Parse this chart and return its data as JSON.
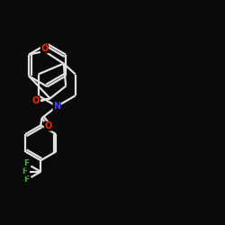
{
  "background_color": "#0a0a0a",
  "bond_color": "#e0e0e0",
  "atom_colors": {
    "O": "#ff2200",
    "N": "#4444ff",
    "F": "#44aa44",
    "C": "#e0e0e0"
  },
  "line_width": 1.6,
  "figsize": [
    2.5,
    2.5
  ],
  "dpi": 100
}
